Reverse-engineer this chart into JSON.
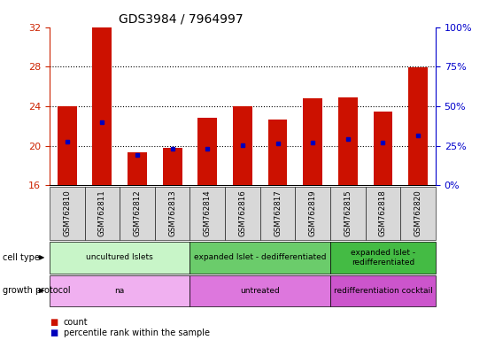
{
  "title": "GDS3984 / 7964997",
  "samples": [
    "GSM762810",
    "GSM762811",
    "GSM762812",
    "GSM762813",
    "GSM762814",
    "GSM762816",
    "GSM762817",
    "GSM762819",
    "GSM762815",
    "GSM762818",
    "GSM762820"
  ],
  "count_values": [
    24.0,
    32.0,
    19.3,
    19.8,
    22.8,
    24.0,
    22.7,
    24.8,
    24.9,
    23.5,
    27.9
  ],
  "percentile_values": [
    20.4,
    22.4,
    19.1,
    19.7,
    19.7,
    20.1,
    20.2,
    20.3,
    20.7,
    20.3,
    21.0
  ],
  "ylim": [
    16,
    32
  ],
  "yticks": [
    16,
    20,
    24,
    28,
    32
  ],
  "ytick_labels_right": [
    "0%",
    "25%",
    "50%",
    "75%",
    "100%"
  ],
  "cell_type_groups": [
    {
      "label": "uncultured Islets",
      "start": 0,
      "end": 4,
      "color": "#c8f5c8"
    },
    {
      "label": "expanded Islet - dedifferentiated",
      "start": 4,
      "end": 8,
      "color": "#6bcc6b"
    },
    {
      "label": "expanded Islet -\nredifferentiated",
      "start": 8,
      "end": 11,
      "color": "#44bb44"
    }
  ],
  "growth_protocol_groups": [
    {
      "label": "na",
      "start": 0,
      "end": 4,
      "color": "#f0b0f0"
    },
    {
      "label": "untreated",
      "start": 4,
      "end": 8,
      "color": "#dd77dd"
    },
    {
      "label": "redifferentiation cocktail",
      "start": 8,
      "end": 11,
      "color": "#cc55cc"
    }
  ],
  "bar_color": "#cc1100",
  "dot_color": "#0000bb",
  "bar_width": 0.55,
  "baseline": 16,
  "bg_color": "#ffffff",
  "left_label_color": "#cc2200",
  "right_label_color": "#0000cc",
  "col_bg_color": "#d8d8d8",
  "legend_square_red": "#cc1100",
  "legend_square_blue": "#0000bb"
}
